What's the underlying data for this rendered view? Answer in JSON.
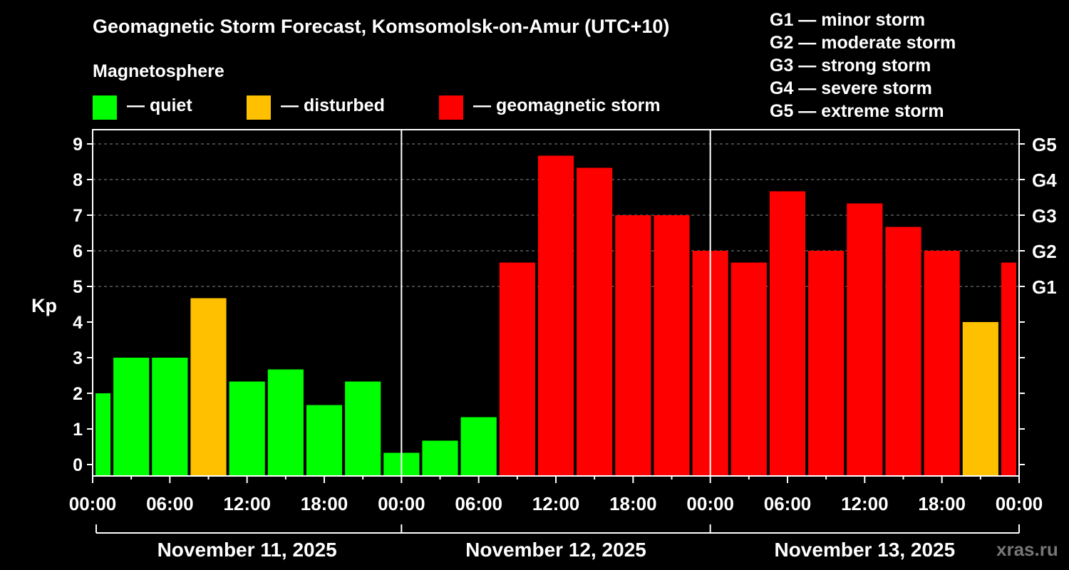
{
  "header": {
    "title": "Geomagnetic Storm Forecast, Komsomolsk-on-Amur (UTC+10)",
    "subtitle": "Magnetosphere"
  },
  "legend": {
    "items": [
      {
        "label": "— quiet",
        "color": "#00ff00"
      },
      {
        "label": "— disturbed",
        "color": "#ffc000"
      },
      {
        "label": "— geomagnetic storm",
        "color": "#ff0000"
      }
    ]
  },
  "storm_scale": [
    "G1 — minor storm",
    "G2 — moderate storm",
    "G3 — strong storm",
    "G4 — severe storm",
    "G5 — extreme storm"
  ],
  "watermark": "xras.ru",
  "chart_data": {
    "type": "bar",
    "ylabel": "Kp",
    "ylim": [
      0,
      9
    ],
    "y_ticks": [
      "0",
      "1",
      "2",
      "3",
      "4",
      "5",
      "6",
      "7",
      "8",
      "9"
    ],
    "right_ticks": [
      {
        "kp": 5,
        "label": "G1"
      },
      {
        "kp": 6,
        "label": "G2"
      },
      {
        "kp": 7,
        "label": "G3"
      },
      {
        "kp": 8,
        "label": "G4"
      },
      {
        "kp": 9,
        "label": "G5"
      }
    ],
    "x_ticks": [
      "00:00",
      "06:00",
      "12:00",
      "18:00",
      "00:00",
      "06:00",
      "12:00",
      "18:00",
      "00:00",
      "06:00",
      "12:00",
      "18:00",
      "00:00"
    ],
    "days": [
      "November 11, 2025",
      "November 12, 2025",
      "November 13, 2025"
    ],
    "grid": "horizontal dashed at integer Kp values 5–9",
    "bars": [
      {
        "time": "Nov 11 00:00",
        "kp": 2.0,
        "level": "quiet"
      },
      {
        "time": "Nov 11 03:00",
        "kp": 3.0,
        "level": "quiet"
      },
      {
        "time": "Nov 11 06:00",
        "kp": 3.0,
        "level": "quiet"
      },
      {
        "time": "Nov 11 09:00",
        "kp": 4.67,
        "level": "disturbed"
      },
      {
        "time": "Nov 11 12:00",
        "kp": 2.33,
        "level": "quiet"
      },
      {
        "time": "Nov 11 15:00",
        "kp": 2.67,
        "level": "quiet"
      },
      {
        "time": "Nov 11 18:00",
        "kp": 1.67,
        "level": "quiet"
      },
      {
        "time": "Nov 11 21:00",
        "kp": 2.33,
        "level": "quiet"
      },
      {
        "time": "Nov 12 00:00",
        "kp": 0.33,
        "level": "quiet"
      },
      {
        "time": "Nov 12 03:00",
        "kp": 0.67,
        "level": "quiet"
      },
      {
        "time": "Nov 12 06:00",
        "kp": 1.33,
        "level": "quiet"
      },
      {
        "time": "Nov 12 09:00",
        "kp": 5.67,
        "level": "storm"
      },
      {
        "time": "Nov 12 12:00",
        "kp": 8.67,
        "level": "storm"
      },
      {
        "time": "Nov 12 15:00",
        "kp": 8.33,
        "level": "storm"
      },
      {
        "time": "Nov 12 18:00",
        "kp": 7.0,
        "level": "storm"
      },
      {
        "time": "Nov 12 21:00",
        "kp": 7.0,
        "level": "storm"
      },
      {
        "time": "Nov 13 00:00",
        "kp": 6.0,
        "level": "storm"
      },
      {
        "time": "Nov 13 03:00",
        "kp": 5.67,
        "level": "storm"
      },
      {
        "time": "Nov 13 06:00",
        "kp": 7.67,
        "level": "storm"
      },
      {
        "time": "Nov 13 09:00",
        "kp": 6.0,
        "level": "storm"
      },
      {
        "time": "Nov 13 12:00",
        "kp": 7.33,
        "level": "storm"
      },
      {
        "time": "Nov 13 15:00",
        "kp": 6.67,
        "level": "storm"
      },
      {
        "time": "Nov 13 18:00",
        "kp": 6.0,
        "level": "storm"
      },
      {
        "time": "Nov 13 21:00",
        "kp": 4.0,
        "level": "disturbed"
      },
      {
        "time": "Nov 14 00:00",
        "kp": 5.67,
        "level": "storm"
      }
    ],
    "colors": {
      "quiet": "#00ff00",
      "disturbed": "#ffc000",
      "storm": "#ff0000",
      "axis": "#ffffff",
      "grid": "#888888"
    }
  }
}
